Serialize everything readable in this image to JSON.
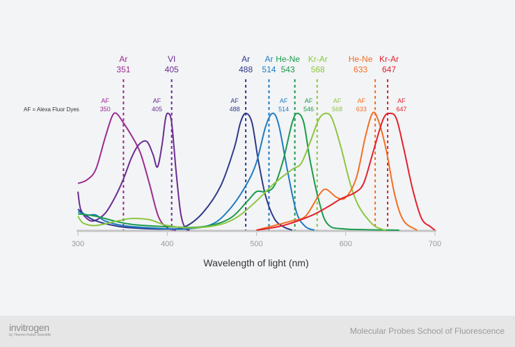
{
  "chart_data": {
    "type": "line",
    "xlabel": "Wavelength of light (nm)",
    "ylabel": "",
    "xlim": [
      300,
      700
    ],
    "ylim": [
      0,
      100
    ],
    "xticks": [
      300,
      400,
      500,
      600,
      700
    ],
    "grid": false,
    "legend_note": "AF = Alexa Fluor Dyes",
    "lasers": [
      {
        "name": "Ar",
        "wavelength": 351,
        "color": "#9b2b8e"
      },
      {
        "name": "VI",
        "wavelength": 405,
        "color": "#6a2c91"
      },
      {
        "name": "Ar",
        "wavelength": 488,
        "color": "#2e3a87"
      },
      {
        "name": "Ar",
        "wavelength": 514,
        "color": "#1e7bc2"
      },
      {
        "name": "He-Ne",
        "wavelength": 543,
        "color": "#1a9b4b"
      },
      {
        "name": "Kr-Ar",
        "wavelength": 568,
        "color": "#8cc63f"
      },
      {
        "name": "He-Ne",
        "wavelength": 633,
        "color": "#f26f22"
      },
      {
        "name": "Kr-Ar",
        "wavelength": 647,
        "color": "#e3202b"
      }
    ],
    "series": [
      {
        "name": "AF",
        "number": "350",
        "color": "#9b2b8e",
        "label_side": "left",
        "points": [
          [
            300,
            40
          ],
          [
            310,
            43
          ],
          [
            320,
            52
          ],
          [
            330,
            78
          ],
          [
            338,
            97
          ],
          [
            343,
            100
          ],
          [
            350,
            93
          ],
          [
            360,
            81
          ],
          [
            370,
            66
          ],
          [
            380,
            40
          ],
          [
            390,
            12
          ],
          [
            400,
            2
          ],
          [
            410,
            0
          ]
        ]
      },
      {
        "name": "AF",
        "number": "405",
        "color": "#6a2c91",
        "label_side": "left",
        "points": [
          [
            300,
            33
          ],
          [
            303,
            18
          ],
          [
            310,
            10
          ],
          [
            318,
            8
          ],
          [
            330,
            14
          ],
          [
            340,
            26
          ],
          [
            350,
            42
          ],
          [
            360,
            62
          ],
          [
            368,
            73
          ],
          [
            377,
            76
          ],
          [
            384,
            65
          ],
          [
            389,
            54
          ],
          [
            394,
            72
          ],
          [
            398,
            95
          ],
          [
            401,
            100
          ],
          [
            405,
            92
          ],
          [
            410,
            50
          ],
          [
            415,
            15
          ],
          [
            420,
            2
          ],
          [
            425,
            0
          ]
        ]
      },
      {
        "name": "AF",
        "number": "488",
        "color": "#2e3a87",
        "label_side": "left",
        "points": [
          [
            300,
            18
          ],
          [
            310,
            12
          ],
          [
            320,
            8
          ],
          [
            340,
            4
          ],
          [
            360,
            2
          ],
          [
            400,
            1
          ],
          [
            420,
            3
          ],
          [
            440,
            15
          ],
          [
            460,
            38
          ],
          [
            475,
            70
          ],
          [
            482,
            92
          ],
          [
            488,
            100
          ],
          [
            495,
            92
          ],
          [
            502,
            60
          ],
          [
            510,
            30
          ],
          [
            520,
            10
          ],
          [
            530,
            3
          ],
          [
            540,
            0
          ]
        ]
      },
      {
        "name": "AF",
        "number": "514",
        "color": "#1e7bc2",
        "label_side": "right",
        "points": [
          [
            300,
            16
          ],
          [
            310,
            13
          ],
          [
            320,
            13
          ],
          [
            330,
            8
          ],
          [
            350,
            4
          ],
          [
            380,
            2
          ],
          [
            420,
            1
          ],
          [
            450,
            5
          ],
          [
            470,
            18
          ],
          [
            488,
            38
          ],
          [
            500,
            58
          ],
          [
            510,
            88
          ],
          [
            518,
            100
          ],
          [
            525,
            90
          ],
          [
            535,
            50
          ],
          [
            545,
            15
          ],
          [
            555,
            3
          ],
          [
            565,
            0
          ]
        ]
      },
      {
        "name": "AF",
        "number": "546",
        "color": "#1a9b4b",
        "label_side": "right",
        "points": [
          [
            300,
            14
          ],
          [
            320,
            12
          ],
          [
            340,
            8
          ],
          [
            360,
            5
          ],
          [
            400,
            3
          ],
          [
            440,
            3
          ],
          [
            470,
            10
          ],
          [
            490,
            25
          ],
          [
            500,
            33
          ],
          [
            510,
            33
          ],
          [
            520,
            38
          ],
          [
            530,
            60
          ],
          [
            540,
            92
          ],
          [
            546,
            100
          ],
          [
            553,
            92
          ],
          [
            560,
            60
          ],
          [
            570,
            25
          ],
          [
            580,
            5
          ],
          [
            600,
            1
          ],
          [
            660,
            0
          ]
        ]
      },
      {
        "name": "AF",
        "number": "568",
        "color": "#8cc63f",
        "label_side": "right",
        "points": [
          [
            300,
            12
          ],
          [
            306,
            6
          ],
          [
            320,
            4
          ],
          [
            345,
            8
          ],
          [
            360,
            10
          ],
          [
            380,
            9
          ],
          [
            400,
            4
          ],
          [
            430,
            2
          ],
          [
            460,
            5
          ],
          [
            480,
            12
          ],
          [
            500,
            25
          ],
          [
            520,
            40
          ],
          [
            540,
            52
          ],
          [
            550,
            57
          ],
          [
            560,
            75
          ],
          [
            570,
            95
          ],
          [
            578,
            100
          ],
          [
            585,
            95
          ],
          [
            595,
            70
          ],
          [
            605,
            40
          ],
          [
            615,
            20
          ],
          [
            630,
            5
          ],
          [
            640,
            1
          ],
          [
            645,
            0
          ]
        ]
      },
      {
        "name": "AF",
        "number": "633",
        "color": "#f26f22",
        "label_side": "left",
        "points": [
          [
            500,
            0
          ],
          [
            520,
            4
          ],
          [
            540,
            8
          ],
          [
            555,
            12
          ],
          [
            570,
            30
          ],
          [
            578,
            35
          ],
          [
            590,
            28
          ],
          [
            600,
            28
          ],
          [
            612,
            45
          ],
          [
            622,
            80
          ],
          [
            630,
            100
          ],
          [
            636,
            95
          ],
          [
            645,
            70
          ],
          [
            655,
            30
          ],
          [
            665,
            8
          ],
          [
            680,
            0
          ]
        ]
      },
      {
        "name": "AF",
        "number": "647",
        "color": "#e3202b",
        "label_side": "right",
        "points": [
          [
            500,
            0
          ],
          [
            530,
            4
          ],
          [
            560,
            12
          ],
          [
            580,
            20
          ],
          [
            595,
            27
          ],
          [
            610,
            32
          ],
          [
            620,
            40
          ],
          [
            630,
            65
          ],
          [
            642,
            95
          ],
          [
            650,
            100
          ],
          [
            657,
            95
          ],
          [
            665,
            70
          ],
          [
            675,
            35
          ],
          [
            685,
            10
          ],
          [
            695,
            3
          ],
          [
            700,
            0
          ]
        ]
      }
    ]
  },
  "footer": {
    "brand": "invitrogen",
    "brand_sub": "by Thermo Fisher Scientific",
    "school": "Molecular Probes School of Fluorescence"
  }
}
